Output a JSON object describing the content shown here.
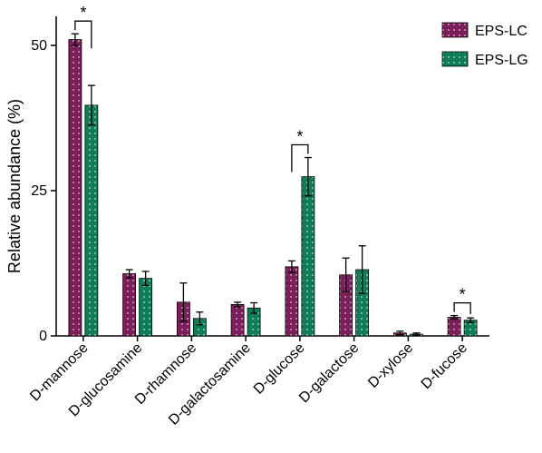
{
  "chart_data": {
    "type": "bar",
    "title": "",
    "xlabel": "",
    "ylabel": "Relative abundance  (%)",
    "ylim": [
      0,
      55
    ],
    "yticks": [
      "0",
      "25",
      "50"
    ],
    "legend_position": "top-right",
    "categories": [
      "D-mannose",
      "D-glucosamine",
      "D-rhamnose",
      "D-galactosamine",
      "D-glucose",
      "D-galactose",
      "D-xylose",
      "D-fucose"
    ],
    "series": [
      {
        "name": "EPS-LC",
        "color": "#7b1f5a",
        "values": [
          51.0,
          10.7,
          5.8,
          5.4,
          11.9,
          10.5,
          0.5,
          3.2
        ],
        "errors": [
          1.0,
          0.7,
          3.3,
          0.4,
          1.0,
          2.9,
          0.3,
          0.3
        ]
      },
      {
        "name": "EPS-LG",
        "color": "#0f7d5a",
        "values": [
          39.7,
          9.9,
          3.0,
          4.8,
          27.4,
          11.4,
          0.3,
          2.7
        ],
        "errors": [
          3.4,
          1.2,
          1.1,
          0.9,
          3.3,
          4.1,
          0.2,
          0.4
        ]
      }
    ],
    "significance": [
      {
        "category_index": 0,
        "label": "*"
      },
      {
        "category_index": 4,
        "label": "*"
      },
      {
        "category_index": 7,
        "label": "*"
      }
    ]
  }
}
